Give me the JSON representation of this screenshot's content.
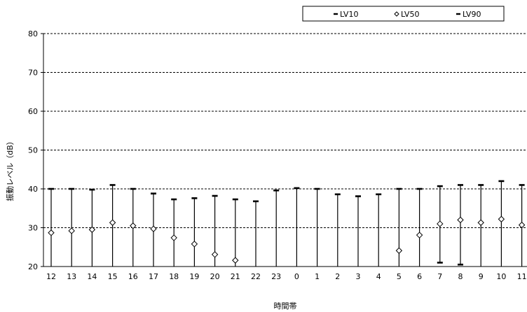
{
  "chart_data": {
    "type": "scatter",
    "xlabel": "時間帯",
    "ylabel": "振動レベル（dB）",
    "ylim": [
      20,
      80
    ],
    "yticks": [
      20,
      30,
      40,
      50,
      60,
      70,
      80
    ],
    "grid": "horizontal-dashed",
    "legend_position": "top-right",
    "categories": [
      "12",
      "13",
      "14",
      "15",
      "16",
      "17",
      "18",
      "19",
      "20",
      "21",
      "22",
      "23",
      "0",
      "1",
      "2",
      "3",
      "4",
      "5",
      "6",
      "7",
      "8",
      "9",
      "10",
      "11"
    ],
    "series": [
      {
        "name": "LV10",
        "marker": "dash",
        "values": [
          40.0,
          40.0,
          39.8,
          41.0,
          40.0,
          38.8,
          37.3,
          37.6,
          38.2,
          37.3,
          36.8,
          39.6,
          40.2,
          40.0,
          38.6,
          38.1,
          38.6,
          40.0,
          40.0,
          40.7,
          41.0,
          41.0,
          42.0,
          41.0
        ]
      },
      {
        "name": "LV50",
        "marker": "diamond",
        "values": [
          28.7,
          29.2,
          29.5,
          31.3,
          30.5,
          29.7,
          27.4,
          25.8,
          23.1,
          21.6,
          null,
          null,
          null,
          null,
          null,
          null,
          null,
          24.1,
          28.1,
          31.0,
          32.0,
          31.3,
          32.2,
          30.7
        ]
      },
      {
        "name": "LV90",
        "marker": "dash",
        "values": [
          null,
          null,
          null,
          null,
          null,
          null,
          null,
          null,
          null,
          null,
          null,
          null,
          null,
          null,
          null,
          null,
          null,
          null,
          null,
          21.0,
          20.5,
          null,
          null,
          null
        ]
      }
    ]
  }
}
